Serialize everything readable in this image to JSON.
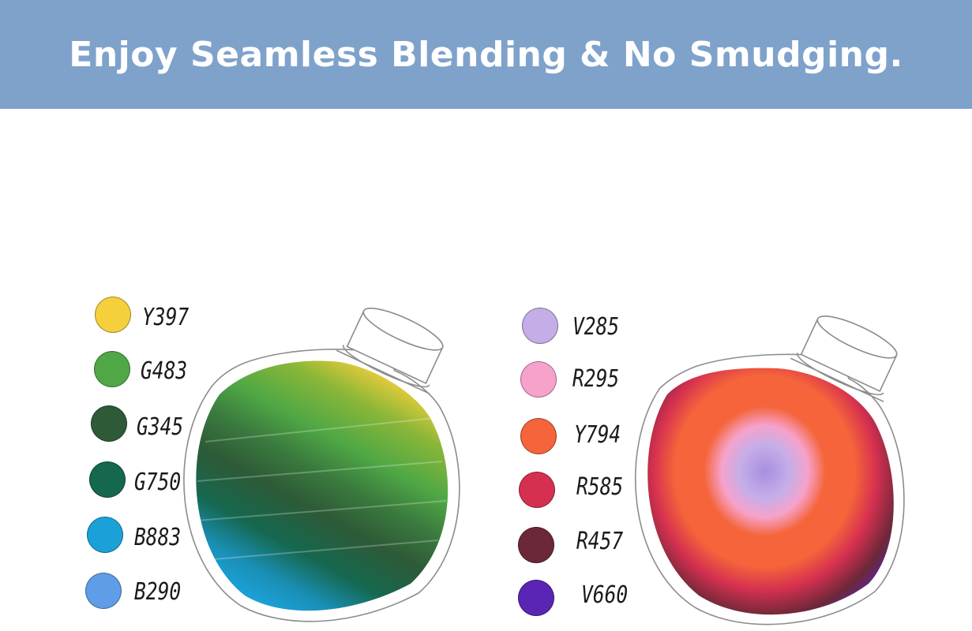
{
  "banner": {
    "title": "Enjoy Seamless Blending & No Smudging."
  },
  "left_set": {
    "swatches": [
      {
        "code": "Y397",
        "color": "#f6cf3d"
      },
      {
        "code": "G483",
        "color": "#4fa845"
      },
      {
        "code": "G345",
        "color": "#2e5a37"
      },
      {
        "code": "G750",
        "color": "#15684f"
      },
      {
        "code": "B883",
        "color": "#1aa2d8"
      },
      {
        "code": "B290",
        "color": "#5f9ee6"
      }
    ]
  },
  "right_set": {
    "swatches": [
      {
        "code": "V285",
        "color": "#c5aee8"
      },
      {
        "code": "R295",
        "color": "#f6a2cb"
      },
      {
        "code": "Y794",
        "color": "#f5643a"
      },
      {
        "code": "R585",
        "color": "#d63050"
      },
      {
        "code": "R457",
        "color": "#6b2838"
      },
      {
        "code": "V660",
        "color": "#5a24b4"
      }
    ]
  }
}
